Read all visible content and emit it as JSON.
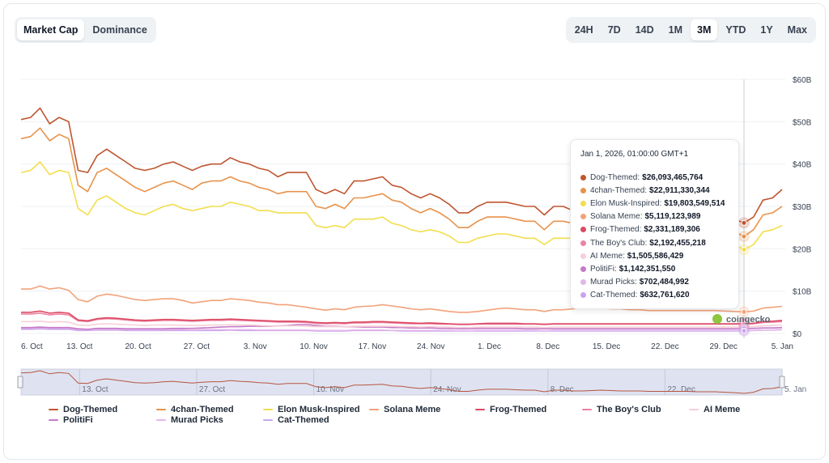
{
  "tabs_left": [
    {
      "label": "Market Cap",
      "active": true
    },
    {
      "label": "Dominance",
      "active": false
    }
  ],
  "tabs_right": [
    {
      "label": "24H",
      "active": false
    },
    {
      "label": "7D",
      "active": false
    },
    {
      "label": "14D",
      "active": false
    },
    {
      "label": "1M",
      "active": false
    },
    {
      "label": "3M",
      "active": true
    },
    {
      "label": "YTD",
      "active": false
    },
    {
      "label": "1Y",
      "active": false
    },
    {
      "label": "Max",
      "active": false
    }
  ],
  "watermark": "coingecko",
  "tooltip": {
    "date": "Jan 1, 2026, 01:00:00 GMT+1",
    "rows": [
      {
        "name": "Dog-Themed",
        "value": "$26,093,465,764",
        "color": "#c0552f"
      },
      {
        "name": "4chan-Themed",
        "value": "$22,911,330,344",
        "color": "#e8924a"
      },
      {
        "name": "Elon Musk-Inspired",
        "value": "$19,803,549,514",
        "color": "#f2de4c"
      },
      {
        "name": "Solana Meme",
        "value": "$5,119,123,989",
        "color": "#f2a27a"
      },
      {
        "name": "Frog-Themed",
        "value": "$2,331,189,306",
        "color": "#dc4a62"
      },
      {
        "name": "The Boy's Club",
        "value": "$2,192,455,218",
        "color": "#ec82a3"
      },
      {
        "name": "AI Meme",
        "value": "$1,505,586,429",
        "color": "#f7cfd8"
      },
      {
        "name": "PolitiFi",
        "value": "$1,142,351,550",
        "color": "#c57ac8"
      },
      {
        "name": "Murad Picks",
        "value": "$702,484,992",
        "color": "#e1b6ea"
      },
      {
        "name": "Cat-Themed",
        "value": "$632,761,620",
        "color": "#c9a5ee"
      }
    ]
  },
  "chart_data": {
    "type": "line",
    "y_ticks": [
      "$0",
      "$10B",
      "$20B",
      "$30B",
      "$40B",
      "$50B",
      "$60B"
    ],
    "ylim": [
      0,
      60
    ],
    "y_unit": "billion USD",
    "x_ticks": [
      "6. Oct",
      "13. Oct",
      "20. Oct",
      "27. Oct",
      "3. Nov",
      "10. Nov",
      "17. Nov",
      "24. Nov",
      "1. Dec",
      "8. Dec",
      "15. Dec",
      "22. Dec",
      "29. Dec",
      "5. Jan"
    ],
    "navigator_ticks": [
      "13. Oct",
      "27. Oct",
      "10. Nov",
      "24. Nov",
      "8. Dec",
      "22. Dec",
      "5. Jan"
    ],
    "grid": true,
    "legend": "bottom",
    "hover_date": "Jan 1",
    "series": [
      {
        "name": "Dog-Themed",
        "color": "#c0552f",
        "values": [
          50.5,
          51,
          53.2,
          49.5,
          51,
          50,
          38.5,
          38,
          42,
          43.5,
          42,
          40.5,
          39,
          38.5,
          39,
          40,
          40.5,
          39.5,
          38.5,
          39.5,
          40,
          40,
          41.5,
          40.5,
          40,
          39,
          38.5,
          37,
          38,
          38,
          38,
          34,
          33,
          34,
          33,
          36,
          36,
          36.5,
          37,
          35,
          34.5,
          33,
          32,
          33,
          32,
          30.5,
          28.5,
          28.5,
          30,
          31,
          31,
          31,
          30.5,
          30,
          30,
          28,
          30,
          30,
          29,
          29,
          29.5,
          30,
          29.5,
          29,
          29,
          29,
          28.5,
          28.5,
          28.5,
          28.5,
          28.5,
          28,
          28,
          28,
          27.5,
          27,
          26.1,
          27.5,
          31.5,
          32,
          34
        ]
      },
      {
        "name": "4chan-Themed",
        "color": "#e8924a",
        "values": [
          46,
          46.5,
          48.5,
          45.5,
          47,
          46,
          35,
          33.5,
          38,
          39,
          37.5,
          36,
          34.5,
          33.5,
          34.5,
          35.5,
          36,
          35,
          34,
          35.5,
          36,
          36,
          37,
          36,
          35.5,
          34.5,
          34,
          33,
          33.5,
          33.5,
          33.5,
          30,
          29.5,
          30.5,
          29.5,
          32,
          32,
          32.5,
          33,
          31.5,
          31,
          29.5,
          28.5,
          29.5,
          28.5,
          27,
          25,
          25,
          26.5,
          27.5,
          27.5,
          27.5,
          27,
          26.5,
          26.5,
          24.5,
          26.5,
          26.5,
          26,
          26,
          26.5,
          27,
          26.5,
          26,
          26,
          26,
          25.5,
          25.5,
          25.5,
          25.5,
          25.5,
          25,
          25,
          25,
          24.5,
          24,
          22.9,
          24.5,
          28,
          28.5,
          30
        ]
      },
      {
        "name": "Elon Musk-Inspired",
        "color": "#f2de4c",
        "values": [
          38,
          38.5,
          40.5,
          37.5,
          38.5,
          38,
          29.5,
          28,
          31.5,
          32.5,
          31,
          29.5,
          28.5,
          28,
          29,
          30,
          30.5,
          29.5,
          29,
          29.5,
          30,
          30,
          31,
          30.5,
          30,
          29,
          29,
          28.5,
          28.5,
          28.5,
          28.5,
          25.5,
          25,
          25.5,
          25,
          27,
          27,
          27,
          27.5,
          26,
          25.5,
          24.5,
          24,
          24.5,
          24,
          23,
          21.5,
          21.5,
          22.5,
          23,
          23.5,
          23.5,
          23,
          22.5,
          22.5,
          21,
          22.5,
          22.5,
          22.5,
          22.5,
          22.5,
          23,
          22.5,
          22.5,
          22.5,
          22,
          22,
          22,
          22,
          22,
          22,
          21.5,
          21.5,
          21.5,
          21,
          21,
          19.8,
          21,
          24,
          24.5,
          25.5
        ]
      },
      {
        "name": "Solana Meme",
        "color": "#f2a27a",
        "values": [
          10.5,
          10.5,
          11.2,
          10.5,
          10.8,
          10.2,
          8,
          7.5,
          8.8,
          9.3,
          9,
          8.5,
          8,
          7.8,
          8,
          8.2,
          8.2,
          7.8,
          7.2,
          7.5,
          7.8,
          7.8,
          8.2,
          8,
          7.8,
          7.4,
          7.2,
          6.8,
          6.8,
          6.5,
          6.2,
          5.8,
          5.5,
          5.8,
          5.6,
          6.2,
          6.4,
          6.5,
          6.8,
          6.5,
          6.2,
          5.8,
          5.6,
          5.8,
          5.5,
          5.2,
          5,
          5,
          5.2,
          5.5,
          5.8,
          6,
          5.8,
          5.6,
          5.6,
          5.2,
          5.6,
          5.6,
          5.8,
          6,
          6,
          6,
          5.8,
          5.8,
          5.6,
          5.6,
          5.4,
          5.4,
          5.4,
          5.4,
          5.4,
          5.4,
          5.4,
          5.4,
          5.3,
          5.2,
          5.1,
          5.3,
          6,
          6.2,
          6.4
        ]
      },
      {
        "name": "Frog-Themed",
        "color": "#dc4a62",
        "values": [
          5,
          5,
          5.3,
          4.8,
          5,
          4.8,
          3.2,
          3,
          3.5,
          3.7,
          3.6,
          3.4,
          3.2,
          3.1,
          3.2,
          3.3,
          3.3,
          3.2,
          3.1,
          3.2,
          3.3,
          3.3,
          3.4,
          3.3,
          3.2,
          3.1,
          3,
          2.9,
          2.9,
          2.9,
          2.8,
          2.6,
          2.5,
          2.6,
          2.5,
          2.7,
          2.7,
          2.8,
          2.8,
          2.7,
          2.6,
          2.5,
          2.4,
          2.5,
          2.4,
          2.3,
          2.2,
          2.2,
          2.3,
          2.4,
          2.4,
          2.4,
          2.4,
          2.3,
          2.3,
          2.2,
          2.3,
          2.3,
          2.3,
          2.3,
          2.3,
          2.3,
          2.3,
          2.3,
          2.3,
          2.3,
          2.3,
          2.3,
          2.3,
          2.3,
          2.3,
          2.3,
          2.3,
          2.3,
          2.3,
          2.3,
          2.33,
          2.4,
          2.8,
          2.9,
          3.1
        ]
      },
      {
        "name": "The Boy's Club",
        "color": "#ec82a3",
        "values": [
          4.6,
          4.6,
          4.8,
          4.4,
          4.6,
          4.4,
          3,
          2.8,
          3.3,
          3.5,
          3.4,
          3.2,
          3,
          2.9,
          3,
          3.1,
          3.1,
          3,
          2.9,
          3,
          3.1,
          3.1,
          3.2,
          3.1,
          3,
          2.9,
          2.8,
          2.7,
          2.7,
          2.7,
          2.6,
          2.4,
          2.3,
          2.4,
          2.3,
          2.5,
          2.5,
          2.6,
          2.6,
          2.5,
          2.4,
          2.3,
          2.3,
          2.3,
          2.2,
          2.2,
          2.1,
          2.1,
          2.2,
          2.2,
          2.2,
          2.2,
          2.2,
          2.2,
          2.2,
          2.1,
          2.2,
          2.2,
          2.2,
          2.2,
          2.2,
          2.2,
          2.2,
          2.2,
          2.2,
          2.2,
          2.2,
          2.2,
          2.2,
          2.2,
          2.2,
          2.2,
          2.2,
          2.2,
          2.2,
          2.2,
          2.19,
          2.3,
          2.6,
          2.7,
          2.8
        ]
      },
      {
        "name": "AI Meme",
        "color": "#f7cfd8",
        "values": [
          2.8,
          2.8,
          2.9,
          2.7,
          2.8,
          2.7,
          2,
          1.9,
          2.2,
          2.3,
          2.2,
          2.1,
          2,
          1.9,
          2,
          2,
          2,
          1.9,
          1.9,
          1.9,
          2,
          2,
          2.1,
          2,
          2,
          1.9,
          1.8,
          1.8,
          1.8,
          1.8,
          1.7,
          1.6,
          1.6,
          1.6,
          1.6,
          1.7,
          1.7,
          1.7,
          1.7,
          1.7,
          1.6,
          1.6,
          1.5,
          1.6,
          1.5,
          1.5,
          1.4,
          1.4,
          1.5,
          1.5,
          1.5,
          1.5,
          1.5,
          1.5,
          1.5,
          1.4,
          1.5,
          1.5,
          1.5,
          1.5,
          1.5,
          1.5,
          1.5,
          1.5,
          1.5,
          1.5,
          1.5,
          1.5,
          1.5,
          1.5,
          1.5,
          1.5,
          1.5,
          1.5,
          1.5,
          1.5,
          1.51,
          1.6,
          1.8,
          1.9,
          2
        ]
      },
      {
        "name": "PolitiFi",
        "color": "#c57ac8",
        "values": [
          1.4,
          1.4,
          1.5,
          1.4,
          1.4,
          1.4,
          1.1,
          1,
          1.2,
          1.2,
          1.2,
          1.1,
          1.1,
          1.1,
          1.1,
          1.1,
          1.2,
          1.2,
          1.2,
          1.3,
          1.4,
          1.5,
          1.6,
          1.6,
          1.7,
          1.7,
          1.7,
          1.8,
          1.9,
          2.1,
          2.1,
          1.9,
          1.7,
          1.7,
          1.6,
          1.6,
          1.5,
          1.5,
          1.5,
          1.4,
          1.4,
          1.3,
          1.3,
          1.3,
          1.2,
          1.2,
          1.1,
          1.1,
          1.2,
          1.2,
          1.2,
          1.2,
          1.2,
          1.1,
          1.1,
          1.1,
          1.1,
          1.1,
          1.1,
          1.1,
          1.1,
          1.1,
          1.1,
          1.1,
          1.1,
          1.1,
          1.1,
          1.1,
          1.1,
          1.1,
          1.1,
          1.1,
          1.1,
          1.1,
          1.1,
          1.1,
          1.14,
          1.2,
          1.3,
          1.3,
          1.4
        ]
      },
      {
        "name": "Murad Picks",
        "color": "#e1b6ea",
        "values": [
          1.3,
          1.3,
          1.4,
          1.3,
          1.3,
          1.2,
          0.9,
          0.8,
          0.9,
          1,
          0.9,
          0.9,
          0.9,
          0.8,
          0.9,
          0.9,
          0.9,
          0.9,
          0.8,
          0.9,
          0.9,
          0.9,
          0.9,
          0.9,
          0.9,
          0.8,
          0.8,
          0.8,
          0.8,
          0.8,
          0.8,
          0.7,
          0.7,
          0.7,
          0.7,
          0.8,
          0.8,
          0.8,
          0.8,
          0.7,
          0.7,
          0.7,
          0.7,
          0.7,
          0.7,
          0.7,
          0.6,
          0.6,
          0.7,
          0.7,
          0.7,
          0.7,
          0.7,
          0.7,
          0.7,
          0.6,
          0.7,
          0.7,
          0.7,
          0.7,
          0.7,
          0.7,
          0.7,
          0.7,
          0.7,
          0.7,
          0.7,
          0.7,
          0.7,
          0.7,
          0.7,
          0.7,
          0.7,
          0.7,
          0.7,
          0.7,
          0.7,
          0.7,
          0.8,
          0.8,
          0.9
        ]
      },
      {
        "name": "Cat-Themed",
        "color": "#c9a5ee",
        "values": [
          1,
          1,
          1.1,
          1,
          1,
          1,
          0.7,
          0.7,
          0.8,
          0.8,
          0.8,
          0.7,
          0.7,
          0.7,
          0.7,
          0.7,
          0.7,
          0.7,
          0.7,
          0.7,
          0.7,
          0.7,
          0.8,
          0.7,
          0.7,
          0.7,
          0.7,
          0.7,
          0.7,
          0.7,
          0.7,
          0.6,
          0.6,
          0.6,
          0.6,
          0.7,
          0.7,
          0.7,
          0.7,
          0.7,
          0.6,
          0.6,
          0.6,
          0.6,
          0.6,
          0.6,
          0.6,
          0.6,
          0.6,
          0.6,
          0.6,
          0.6,
          0.6,
          0.6,
          0.6,
          0.6,
          0.6,
          0.6,
          0.6,
          0.6,
          0.6,
          0.6,
          0.6,
          0.6,
          0.6,
          0.6,
          0.6,
          0.6,
          0.6,
          0.6,
          0.6,
          0.6,
          0.6,
          0.6,
          0.6,
          0.6,
          0.63,
          0.7,
          0.8,
          0.8,
          0.9
        ]
      }
    ]
  }
}
